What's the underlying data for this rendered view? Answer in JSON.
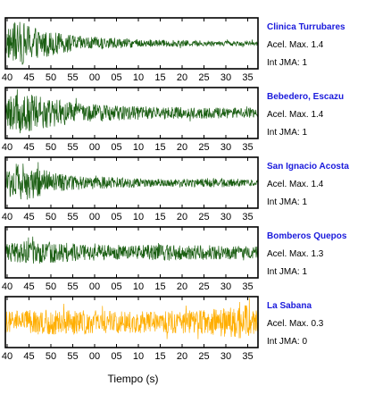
{
  "chart_data": {
    "type": "line",
    "xlabel": "Tiempo (s)",
    "tick_labels": [
      "40",
      "45",
      "50",
      "55",
      "00",
      "05",
      "10",
      "15",
      "20",
      "25",
      "30",
      "35"
    ],
    "panels": [
      {
        "station": "Clinica Turrubares",
        "accel": "Acel. Max. 1.4",
        "jma": "Int JMA: 1",
        "color": "#1a5e12",
        "envelope": [
          [
            0,
            0.6
          ],
          [
            0.05,
            0.95
          ],
          [
            0.12,
            0.7
          ],
          [
            0.2,
            0.45
          ],
          [
            0.3,
            0.3
          ],
          [
            0.45,
            0.2
          ],
          [
            0.6,
            0.15
          ],
          [
            0.8,
            0.12
          ],
          [
            1.0,
            0.1
          ]
        ]
      },
      {
        "station": "Bebedero, Escazu",
        "accel": "Acel. Max. 1.4",
        "jma": "Int JMA: 1",
        "color": "#1a5e12",
        "envelope": [
          [
            0,
            0.5
          ],
          [
            0.05,
            0.95
          ],
          [
            0.15,
            0.65
          ],
          [
            0.3,
            0.4
          ],
          [
            0.5,
            0.3
          ],
          [
            0.7,
            0.25
          ],
          [
            1.0,
            0.2
          ]
        ]
      },
      {
        "station": "San Ignacio Acosta",
        "accel": "Acel. Max. 1.4",
        "jma": "Int JMA: 1",
        "color": "#1a5e12",
        "envelope": [
          [
            0,
            0.5
          ],
          [
            0.05,
            0.9
          ],
          [
            0.15,
            0.55
          ],
          [
            0.25,
            0.3
          ],
          [
            0.4,
            0.25
          ],
          [
            0.6,
            0.15
          ],
          [
            0.85,
            0.2
          ],
          [
            1.0,
            0.12
          ]
        ]
      },
      {
        "station": "Bomberos Quepos",
        "accel": "Acel. Max. 1.3",
        "jma": "Int JMA: 1",
        "color": "#1a5e12",
        "envelope": [
          [
            0,
            0.35
          ],
          [
            0.1,
            0.5
          ],
          [
            0.3,
            0.35
          ],
          [
            0.5,
            0.3
          ],
          [
            0.64,
            0.35
          ],
          [
            0.8,
            0.3
          ],
          [
            1.0,
            0.25
          ]
        ]
      },
      {
        "station": "La Sabana",
        "accel": "Acel. Max. 0.3",
        "jma": "Int JMA: 0",
        "color": "#ffae00",
        "envelope": [
          [
            0,
            0.45
          ],
          [
            0.2,
            0.55
          ],
          [
            0.5,
            0.45
          ],
          [
            0.8,
            0.5
          ],
          [
            0.95,
            0.75
          ],
          [
            1.0,
            0.55
          ]
        ]
      }
    ]
  }
}
